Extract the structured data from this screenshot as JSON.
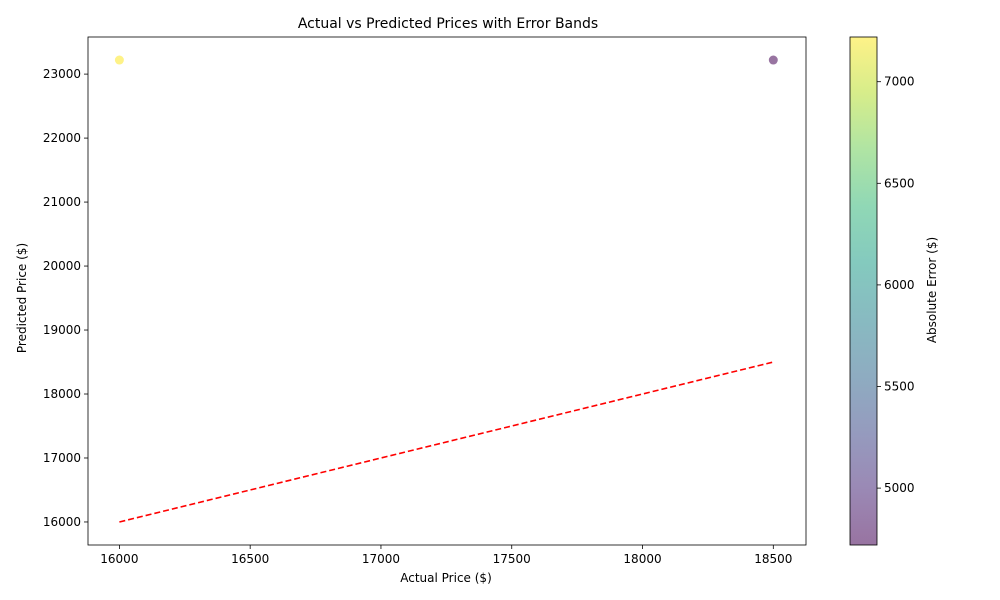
{
  "chart_data": {
    "type": "scatter",
    "title": "Actual vs Predicted Prices with Error Bands",
    "xlabel": "Actual Price ($)",
    "ylabel": "Predicted Price ($)",
    "colorbar_label": "Absolute Error ($)",
    "xlim": [
      15880,
      18625
    ],
    "ylim": [
      15640,
      23580
    ],
    "xticks": [
      16000,
      16500,
      17000,
      17500,
      18000,
      18500
    ],
    "yticks": [
      16000,
      17000,
      18000,
      19000,
      20000,
      21000,
      22000,
      23000
    ],
    "colorbar_ticks": [
      5000,
      5500,
      6000,
      6500,
      7000
    ],
    "colorbar_range": [
      4720,
      7220
    ],
    "colormap": "viridis",
    "grid": false,
    "points": [
      {
        "x": 16000,
        "y": 23220,
        "error": 7220
      },
      {
        "x": 18500,
        "y": 23220,
        "error": 4720
      }
    ],
    "reference_line": {
      "x": [
        16000,
        18500
      ],
      "y": [
        16000,
        18500
      ],
      "color": "#ff0000",
      "style": "dashed"
    }
  }
}
